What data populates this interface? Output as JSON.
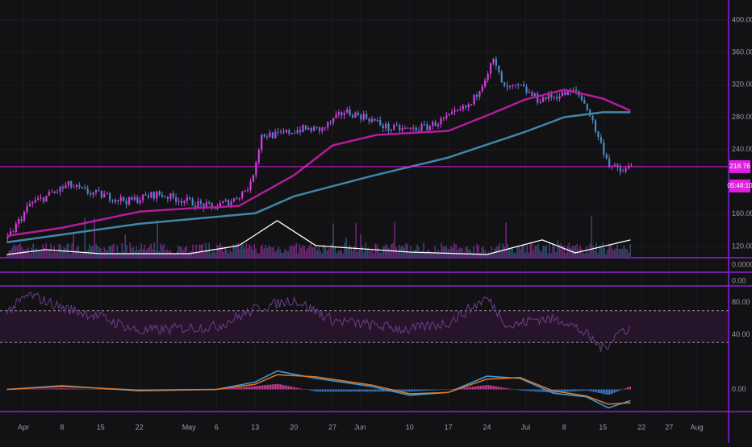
{
  "chart_data": {
    "type": "line",
    "colors": {
      "background": "#121214",
      "grid": "#1c1c20",
      "axis_text": "#9b9ba3",
      "separator": "#8a1fd6",
      "candle_up": "#d63ce0",
      "candle_down": "#4a88c4",
      "ma_fast": "#b31c9c",
      "ma_slow": "#3f87a8",
      "volume_ma": "#ffffff",
      "price_line": "#e020e0",
      "rsi_line": "#6f3c8a",
      "rsi_band": "#26152a",
      "macd_line": "#3f9de0",
      "signal_line": "#e07a28",
      "hist_pos": "#d13c9a",
      "hist_neg": "#3c7fd1"
    },
    "x_axis": {
      "ticks": [
        {
          "label": "Apr",
          "date": "2018-04-01"
        },
        {
          "label": "8",
          "date": "2018-04-08"
        },
        {
          "label": "15",
          "date": "2018-04-15"
        },
        {
          "label": "22",
          "date": "2018-04-22"
        },
        {
          "label": "May",
          "date": "2018-05-01"
        },
        {
          "label": "6",
          "date": "2018-05-06"
        },
        {
          "label": "13",
          "date": "2018-05-13"
        },
        {
          "label": "20",
          "date": "2018-05-20"
        },
        {
          "label": "27",
          "date": "2018-05-27"
        },
        {
          "label": "Jun",
          "date": "2018-06-01"
        },
        {
          "label": "10",
          "date": "2018-06-10"
        },
        {
          "label": "17",
          "date": "2018-06-17"
        },
        {
          "label": "24",
          "date": "2018-06-24"
        },
        {
          "label": "Jul",
          "date": "2018-07-01"
        },
        {
          "label": "8",
          "date": "2018-07-08"
        },
        {
          "label": "15",
          "date": "2018-07-15"
        },
        {
          "label": "22",
          "date": "2018-07-22"
        },
        {
          "label": "27",
          "date": "2018-07-27"
        },
        {
          "label": "Aug",
          "date": "2018-08-01"
        }
      ]
    },
    "price_panel": {
      "y_ticks": [
        "400.00",
        "360.00",
        "320.00",
        "280.00",
        "240.00",
        "160.00",
        "120.00"
      ],
      "ylim": [
        107,
        425
      ],
      "current_price": 218.76,
      "current_price_label": "218.76",
      "countdown_label": "05:48:10",
      "close_series": [
        {
          "date": "2018-03-29",
          "close": 130
        },
        {
          "date": "2018-04-02",
          "close": 172
        },
        {
          "date": "2018-04-05",
          "close": 182
        },
        {
          "date": "2018-04-09",
          "close": 196
        },
        {
          "date": "2018-04-12",
          "close": 188
        },
        {
          "date": "2018-04-16",
          "close": 182
        },
        {
          "date": "2018-04-20",
          "close": 176
        },
        {
          "date": "2018-04-25",
          "close": 185
        },
        {
          "date": "2018-04-30",
          "close": 177
        },
        {
          "date": "2018-05-05",
          "close": 168
        },
        {
          "date": "2018-05-09",
          "close": 178
        },
        {
          "date": "2018-05-12",
          "close": 196
        },
        {
          "date": "2018-05-14",
          "close": 258
        },
        {
          "date": "2018-05-17",
          "close": 258
        },
        {
          "date": "2018-05-21",
          "close": 265
        },
        {
          "date": "2018-05-25",
          "close": 265
        },
        {
          "date": "2018-05-29",
          "close": 287
        },
        {
          "date": "2018-06-02",
          "close": 280
        },
        {
          "date": "2018-06-06",
          "close": 266
        },
        {
          "date": "2018-06-10",
          "close": 265
        },
        {
          "date": "2018-06-13",
          "close": 268
        },
        {
          "date": "2018-06-17",
          "close": 280
        },
        {
          "date": "2018-06-21",
          "close": 296
        },
        {
          "date": "2018-06-25",
          "close": 350
        },
        {
          "date": "2018-06-27",
          "close": 315
        },
        {
          "date": "2018-06-30",
          "close": 317
        },
        {
          "date": "2018-07-03",
          "close": 302
        },
        {
          "date": "2018-07-06",
          "close": 306
        },
        {
          "date": "2018-07-10",
          "close": 312
        },
        {
          "date": "2018-07-12",
          "close": 292
        },
        {
          "date": "2018-07-14",
          "close": 255
        },
        {
          "date": "2018-07-16",
          "close": 222
        },
        {
          "date": "2018-07-18",
          "close": 212
        },
        {
          "date": "2018-07-20",
          "close": 219
        }
      ],
      "ma_fast_series": [
        {
          "date": "2018-03-29",
          "value": 133
        },
        {
          "date": "2018-04-08",
          "value": 143
        },
        {
          "date": "2018-04-22",
          "value": 163
        },
        {
          "date": "2018-05-01",
          "value": 167
        },
        {
          "date": "2018-05-10",
          "value": 170
        },
        {
          "date": "2018-05-20",
          "value": 208
        },
        {
          "date": "2018-05-27",
          "value": 245
        },
        {
          "date": "2018-06-04",
          "value": 258
        },
        {
          "date": "2018-06-17",
          "value": 263
        },
        {
          "date": "2018-06-24",
          "value": 282
        },
        {
          "date": "2018-07-01",
          "value": 302
        },
        {
          "date": "2018-07-08",
          "value": 314
        },
        {
          "date": "2018-07-15",
          "value": 303
        },
        {
          "date": "2018-07-20",
          "value": 288
        }
      ],
      "ma_slow_series": [
        {
          "date": "2018-03-29",
          "value": 125
        },
        {
          "date": "2018-04-22",
          "value": 148
        },
        {
          "date": "2018-05-13",
          "value": 161
        },
        {
          "date": "2018-05-20",
          "value": 182
        },
        {
          "date": "2018-06-03",
          "value": 207
        },
        {
          "date": "2018-06-17",
          "value": 230
        },
        {
          "date": "2018-07-01",
          "value": 262
        },
        {
          "date": "2018-07-08",
          "value": 280
        },
        {
          "date": "2018-07-15",
          "value": 286
        },
        {
          "date": "2018-07-20",
          "value": 286
        }
      ],
      "volume_ma_series": [
        {
          "date": "2018-03-29",
          "value": 110
        },
        {
          "date": "2018-04-05",
          "value": 116
        },
        {
          "date": "2018-04-15",
          "value": 111
        },
        {
          "date": "2018-05-01",
          "value": 111
        },
        {
          "date": "2018-05-10",
          "value": 121
        },
        {
          "date": "2018-05-17",
          "value": 152
        },
        {
          "date": "2018-05-24",
          "value": 121
        },
        {
          "date": "2018-06-10",
          "value": 113
        },
        {
          "date": "2018-06-24",
          "value": 110
        },
        {
          "date": "2018-07-04",
          "value": 128
        },
        {
          "date": "2018-07-10",
          "value": 112
        },
        {
          "date": "2018-07-20",
          "value": 128
        }
      ]
    },
    "empty_panels": [
      {
        "y_tick": "0.000000"
      },
      {
        "y_tick": "0.00"
      }
    ],
    "rsi_panel": {
      "y_ticks": [
        "80.00",
        "40.00"
      ],
      "ylim": [
        0,
        100
      ],
      "upper_band": 70,
      "lower_band": 30,
      "series": [
        {
          "date": "2018-03-29",
          "value": 68
        },
        {
          "date": "2018-04-02",
          "value": 90
        },
        {
          "date": "2018-04-08",
          "value": 74
        },
        {
          "date": "2018-04-15",
          "value": 62
        },
        {
          "date": "2018-04-22",
          "value": 44
        },
        {
          "date": "2018-04-30",
          "value": 48
        },
        {
          "date": "2018-05-06",
          "value": 50
        },
        {
          "date": "2018-05-13",
          "value": 72
        },
        {
          "date": "2018-05-20",
          "value": 84
        },
        {
          "date": "2018-05-27",
          "value": 58
        },
        {
          "date": "2018-06-03",
          "value": 52
        },
        {
          "date": "2018-06-10",
          "value": 46
        },
        {
          "date": "2018-06-17",
          "value": 55
        },
        {
          "date": "2018-06-24",
          "value": 86
        },
        {
          "date": "2018-06-28",
          "value": 50
        },
        {
          "date": "2018-07-03",
          "value": 60
        },
        {
          "date": "2018-07-08",
          "value": 58
        },
        {
          "date": "2018-07-12",
          "value": 40
        },
        {
          "date": "2018-07-15",
          "value": 22
        },
        {
          "date": "2018-07-18",
          "value": 44
        },
        {
          "date": "2018-07-20",
          "value": 48
        }
      ]
    },
    "macd_panel": {
      "y_ticks": [
        "0.00"
      ],
      "ylim": [
        -30,
        30
      ],
      "macd_series": [
        {
          "date": "2018-03-29",
          "value": 0
        },
        {
          "date": "2018-04-08",
          "value": 5
        },
        {
          "date": "2018-04-22",
          "value": -2
        },
        {
          "date": "2018-05-06",
          "value": 0
        },
        {
          "date": "2018-05-13",
          "value": 10
        },
        {
          "date": "2018-05-17",
          "value": 25
        },
        {
          "date": "2018-05-24",
          "value": 15
        },
        {
          "date": "2018-06-03",
          "value": 4
        },
        {
          "date": "2018-06-10",
          "value": -8
        },
        {
          "date": "2018-06-17",
          "value": -4
        },
        {
          "date": "2018-06-24",
          "value": 18
        },
        {
          "date": "2018-06-30",
          "value": 15
        },
        {
          "date": "2018-07-06",
          "value": -5
        },
        {
          "date": "2018-07-12",
          "value": -10
        },
        {
          "date": "2018-07-16",
          "value": -25
        },
        {
          "date": "2018-07-20",
          "value": -15
        }
      ],
      "signal_series": [
        {
          "date": "2018-03-29",
          "value": 0
        },
        {
          "date": "2018-04-08",
          "value": 4
        },
        {
          "date": "2018-04-22",
          "value": -1
        },
        {
          "date": "2018-05-06",
          "value": 0
        },
        {
          "date": "2018-05-13",
          "value": 7
        },
        {
          "date": "2018-05-17",
          "value": 20
        },
        {
          "date": "2018-05-24",
          "value": 17
        },
        {
          "date": "2018-06-03",
          "value": 6
        },
        {
          "date": "2018-06-10",
          "value": -6
        },
        {
          "date": "2018-06-17",
          "value": -4
        },
        {
          "date": "2018-06-24",
          "value": 14
        },
        {
          "date": "2018-06-30",
          "value": 16
        },
        {
          "date": "2018-07-06",
          "value": -2
        },
        {
          "date": "2018-07-12",
          "value": -9
        },
        {
          "date": "2018-07-16",
          "value": -20
        },
        {
          "date": "2018-07-20",
          "value": -18
        }
      ]
    }
  }
}
